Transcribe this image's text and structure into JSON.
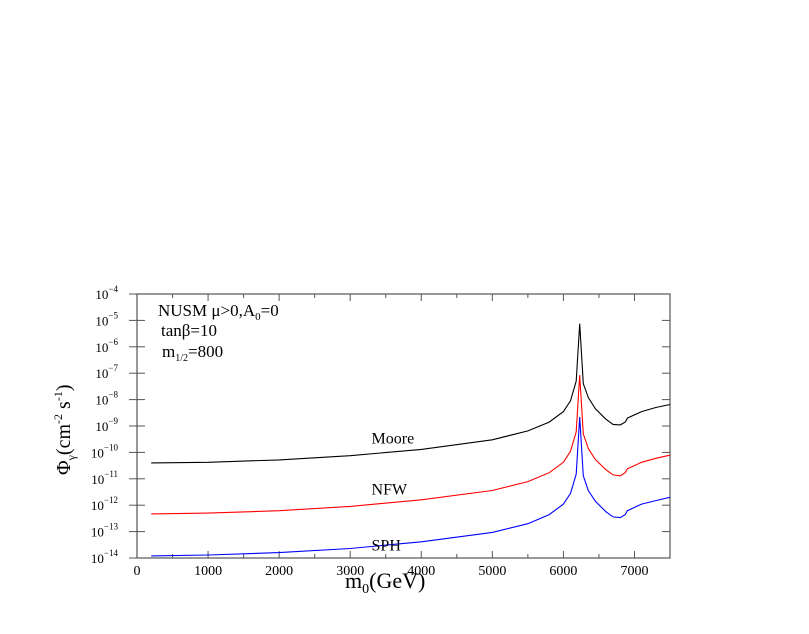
{
  "chart_data": {
    "type": "line",
    "title": "",
    "annotations": {
      "line1": "NUSM  μ>0,A",
      "line1_sub": "0",
      "line1_tail": "=0",
      "line2": "tanβ=10",
      "line3_main": "m",
      "line3_sub": "1/2",
      "line3_tail": "=800"
    },
    "xlabel": "m",
    "xlabel_sub": "0",
    "xlabel_tail": "(GeV)",
    "ylabel": "Φ",
    "ylabel_sub": "γ",
    "ylabel_tail": "(cm",
    "ylabel_exp1": "-2",
    "ylabel_mid": " s",
    "ylabel_exp2": "-1",
    "ylabel_close": ")",
    "xlim": [
      0,
      7500
    ],
    "ylim": [
      1e-14,
      0.0001
    ],
    "yscale": "log",
    "x_ticks": [
      0,
      1000,
      2000,
      3000,
      4000,
      5000,
      6000,
      7000
    ],
    "x_tick_labels": [
      "0",
      "1000",
      "2000",
      "3000",
      "4000",
      "5000",
      "6000",
      "7000"
    ],
    "y_ticks_exp": [
      -4,
      -5,
      -6,
      -7,
      -8,
      -9,
      -10,
      -11,
      -12,
      -13,
      -14
    ],
    "y_tick_base": "10",
    "grid": false,
    "legend": "inline labels",
    "series": [
      {
        "name": "Moore",
        "color": "#000000",
        "label_pos": [
          3300,
          2.2e-10
        ],
        "points": [
          [
            200,
            4e-11
          ],
          [
            1000,
            4.2e-11
          ],
          [
            2000,
            5.2e-11
          ],
          [
            3000,
            7.5e-11
          ],
          [
            4000,
            1.3e-10
          ],
          [
            5000,
            3e-10
          ],
          [
            5500,
            6.5e-10
          ],
          [
            5800,
            1.4e-09
          ],
          [
            6000,
            3.5e-09
          ],
          [
            6100,
            9e-09
          ],
          [
            6180,
            5e-08
          ],
          [
            6230,
            7.5e-06
          ],
          [
            6280,
            4e-08
          ],
          [
            6350,
            1.2e-08
          ],
          [
            6450,
            4.5e-09
          ],
          [
            6600,
            1.8e-09
          ],
          [
            6700,
            1.15e-09
          ],
          [
            6800,
            1.1e-09
          ],
          [
            6870,
            1.4e-09
          ],
          [
            6900,
            2e-09
          ],
          [
            7100,
            3.5e-09
          ],
          [
            7300,
            5e-09
          ],
          [
            7500,
            6.5e-09
          ]
        ]
      },
      {
        "name": "NFW",
        "color": "#ff0000",
        "label_pos": [
          3300,
          2.5e-12
        ],
        "points": [
          [
            200,
            4.7e-13
          ],
          [
            1000,
            5e-13
          ],
          [
            2000,
            6.2e-13
          ],
          [
            3000,
            9e-13
          ],
          [
            4000,
            1.6e-12
          ],
          [
            5000,
            3.6e-12
          ],
          [
            5500,
            7.8e-12
          ],
          [
            5800,
            1.7e-11
          ],
          [
            6000,
            4.2e-11
          ],
          [
            6100,
            1.1e-10
          ],
          [
            6180,
            6e-10
          ],
          [
            6230,
            8.5e-08
          ],
          [
            6280,
            5e-10
          ],
          [
            6350,
            1.4e-10
          ],
          [
            6450,
            5.4e-11
          ],
          [
            6600,
            2.2e-11
          ],
          [
            6700,
            1.4e-11
          ],
          [
            6800,
            1.3e-11
          ],
          [
            6870,
            1.7e-11
          ],
          [
            6900,
            2.4e-11
          ],
          [
            7100,
            4.2e-11
          ],
          [
            7300,
            6e-11
          ],
          [
            7500,
            7.8e-11
          ]
        ]
      },
      {
        "name": "SPH",
        "color": "#0000ff",
        "label_pos": [
          3300,
          1.9e-14
        ],
        "points": [
          [
            200,
            1.2e-14
          ],
          [
            1000,
            1.3e-14
          ],
          [
            2000,
            1.6e-14
          ],
          [
            3000,
            2.3e-14
          ],
          [
            4000,
            4.1e-14
          ],
          [
            5000,
            9.3e-14
          ],
          [
            5500,
            2e-13
          ],
          [
            5800,
            4.4e-13
          ],
          [
            6000,
            1.1e-12
          ],
          [
            6100,
            2.8e-12
          ],
          [
            6180,
            1.5e-11
          ],
          [
            6230,
            2.2e-09
          ],
          [
            6280,
            1.3e-11
          ],
          [
            6350,
            3.6e-12
          ],
          [
            6450,
            1.4e-12
          ],
          [
            6600,
            5.6e-13
          ],
          [
            6700,
            3.6e-13
          ],
          [
            6800,
            3.4e-13
          ],
          [
            6870,
            4.4e-13
          ],
          [
            6900,
            6.2e-13
          ],
          [
            7100,
            1.1e-12
          ],
          [
            7300,
            1.5e-12
          ],
          [
            7500,
            2e-12
          ]
        ]
      }
    ]
  }
}
